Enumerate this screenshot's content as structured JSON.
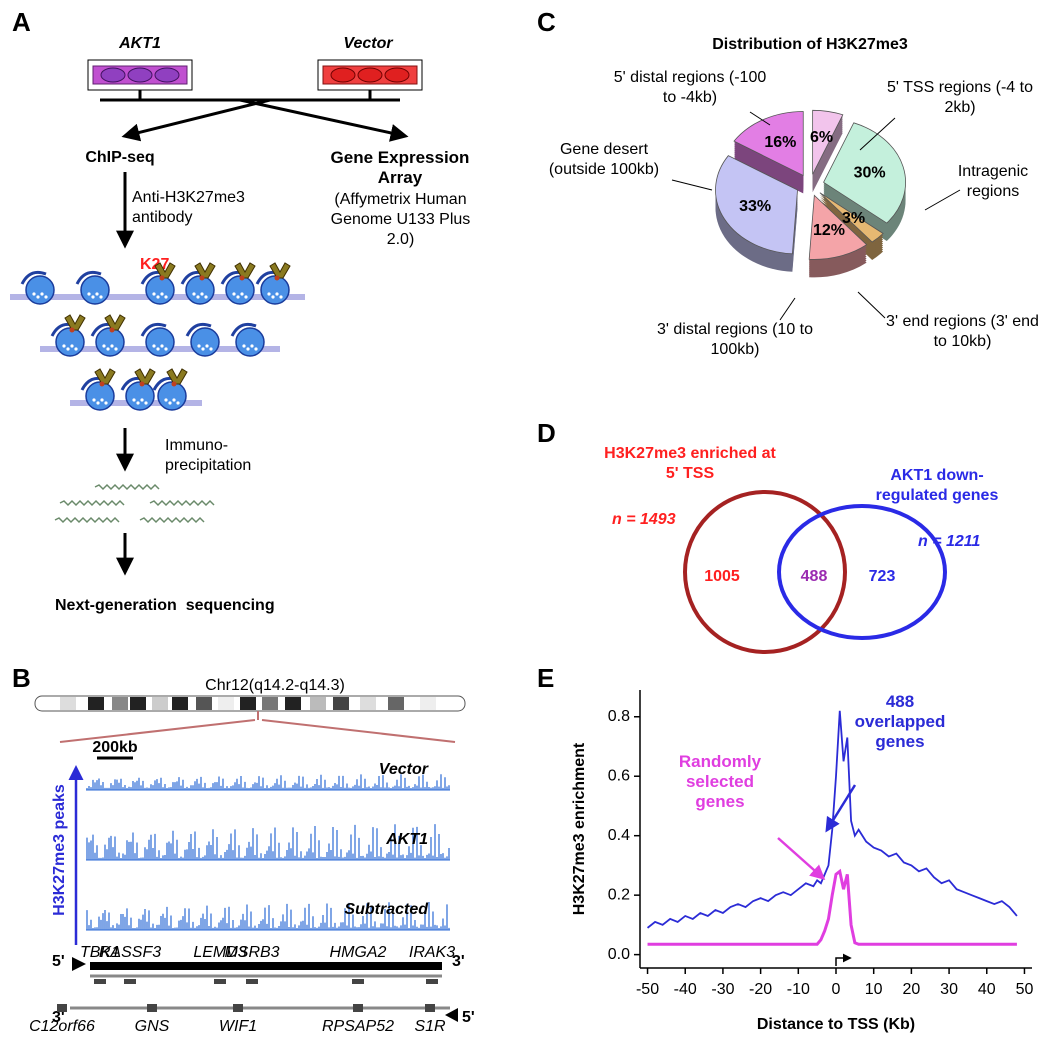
{
  "panel_a": {
    "label": "A",
    "left_cells": "AKT1",
    "right_cells": "Vector",
    "chip_seq": "ChIP-seq",
    "expression_title": "Gene Expression Array",
    "expression_detail": "(Affymetrix Human Genome U133 Plus 2.0)",
    "antibody": "Anti-H3K27me3 antibody",
    "mark": "K27",
    "ip": "Immuno-precipitation",
    "sequencing": "Next-generation  sequencing"
  },
  "panel_b": {
    "label": "B",
    "region": "Chr12(q14.2-q14.3)",
    "scale_bar": "200kb",
    "y_label": "H3K27me3 peaks",
    "tracks": [
      "Vector",
      "AKT1",
      "Subtracted"
    ],
    "forward_genes": [
      "TBK1",
      "RASSF3",
      "LEMD3",
      "MSRB3",
      "HMGA2",
      "IRAK3"
    ],
    "reverse_genes": [
      "C12orf66",
      "GNS",
      "WIF1",
      "RPSAP52",
      "S1R"
    ],
    "strand_5": "5'",
    "strand_3": "3'"
  },
  "panel_c": {
    "label": "C"
  },
  "panel_d": {
    "label": "D",
    "left_set": "H3K27me3 enriched at 5' TSS",
    "left_n": "n = 1493",
    "right_set": "AKT1 down-regulated genes",
    "right_n": "n = 1211",
    "left_only": "1005",
    "overlap": "488",
    "right_only": "723"
  },
  "panel_e": {
    "label": "E"
  },
  "chart_data": [
    {
      "type": "pie",
      "title": "Distribution of H3K27me3",
      "categories": [
        "5' TSS regions (-4 to 2kb)",
        "Intragenic regions",
        "3' end regions (3' end to 10kb)",
        "3' distal regions (10 to 100kb)",
        "Gene desert (outside 100kb)",
        "5' distal regions (-100 to -4kb)"
      ],
      "values": [
        6,
        30,
        3,
        12,
        33,
        16
      ],
      "value_labels": [
        "6%",
        "30%",
        "3%",
        "12%",
        "33%",
        "16%"
      ],
      "colors": [
        "#f2c4ec",
        "#c4f0dc",
        "#e6b872",
        "#f4a4a8",
        "#c4c4f4",
        "#e27ee4"
      ]
    },
    {
      "type": "line",
      "xlabel": "Distance to TSS (Kb)",
      "ylabel": "H3K27me3 enrichment",
      "x": [
        -50,
        -48,
        -46,
        -44,
        -42,
        -40,
        -38,
        -36,
        -34,
        -32,
        -30,
        -28,
        -26,
        -24,
        -22,
        -20,
        -18,
        -16,
        -14,
        -12,
        -10,
        -8,
        -6,
        -5,
        -4,
        -3,
        -2,
        -1,
        0,
        1,
        2,
        3,
        4,
        5,
        6,
        8,
        10,
        12,
        14,
        16,
        18,
        20,
        22,
        24,
        26,
        28,
        30,
        32,
        34,
        36,
        38,
        40,
        42,
        44,
        46,
        48
      ],
      "series": [
        {
          "name": "488 overlapped genes",
          "color": "#2b2bd6",
          "values": [
            0.09,
            0.11,
            0.1,
            0.12,
            0.11,
            0.13,
            0.12,
            0.14,
            0.13,
            0.15,
            0.14,
            0.16,
            0.17,
            0.16,
            0.18,
            0.19,
            0.18,
            0.2,
            0.21,
            0.2,
            0.22,
            0.24,
            0.23,
            0.25,
            0.24,
            0.27,
            0.3,
            0.42,
            0.6,
            0.82,
            0.65,
            0.73,
            0.45,
            0.4,
            0.42,
            0.38,
            0.36,
            0.35,
            0.33,
            0.34,
            0.31,
            0.3,
            0.28,
            0.29,
            0.26,
            0.24,
            0.25,
            0.22,
            0.21,
            0.2,
            0.19,
            0.18,
            0.17,
            0.18,
            0.16,
            0.13
          ]
        },
        {
          "name": "Randomly selected genes",
          "color": "#e03ee0",
          "values": [
            0.035,
            0.035,
            0.035,
            0.035,
            0.035,
            0.035,
            0.035,
            0.035,
            0.035,
            0.035,
            0.035,
            0.035,
            0.035,
            0.035,
            0.035,
            0.035,
            0.035,
            0.035,
            0.035,
            0.035,
            0.035,
            0.035,
            0.035,
            0.035,
            0.05,
            0.08,
            0.12,
            0.2,
            0.27,
            0.28,
            0.22,
            0.27,
            0.1,
            0.04,
            0.035,
            0.035,
            0.035,
            0.035,
            0.035,
            0.035,
            0.035,
            0.035,
            0.035,
            0.035,
            0.035,
            0.035,
            0.035,
            0.035,
            0.035,
            0.035,
            0.035,
            0.035,
            0.035,
            0.035,
            0.035,
            0.035
          ]
        }
      ],
      "xlim": [
        -52,
        52
      ],
      "ylim": [
        -0.045,
        0.89
      ],
      "xticks": [
        -50,
        -40,
        -30,
        -20,
        -10,
        0,
        10,
        20,
        30,
        40,
        50
      ],
      "yticks": [
        {
          "value": 0,
          "label": "0.0"
        },
        0.2,
        0.4,
        0.6,
        0.8
      ]
    }
  ]
}
